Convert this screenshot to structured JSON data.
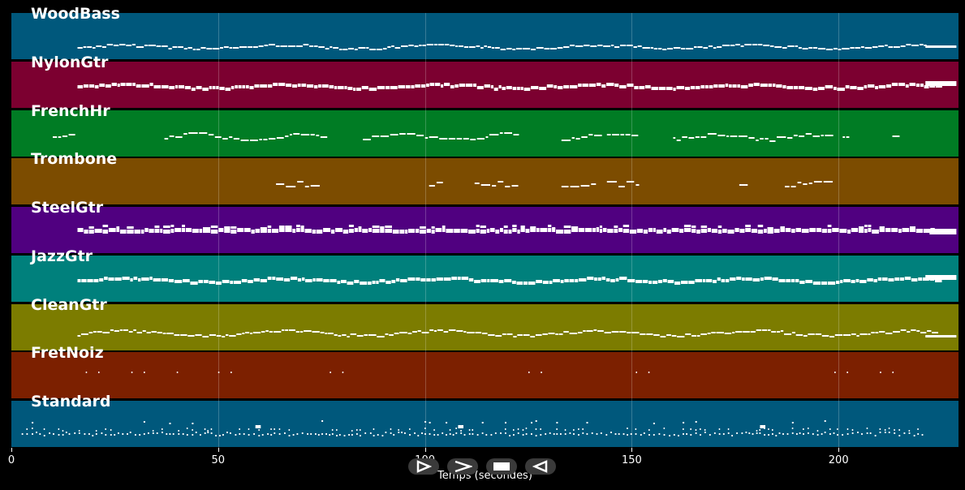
{
  "tracks": [
    {
      "name": "WoodBass",
      "color": "#00587c",
      "pattern": "steady-low"
    },
    {
      "name": "NylonGtr",
      "color": "#7c0030",
      "pattern": "thick"
    },
    {
      "name": "FrenchHr",
      "color": "#007c24",
      "pattern": "phrases"
    },
    {
      "name": "Trombone",
      "color": "#7c4c00",
      "pattern": "sparse"
    },
    {
      "name": "SteelGtr",
      "color": "#500080",
      "pattern": "chords"
    },
    {
      "name": "JazzGtr",
      "color": "#00807c",
      "pattern": "thick"
    },
    {
      "name": "CleanGtr",
      "color": "#7c7c00",
      "pattern": "wavy"
    },
    {
      "name": "FretNoiz",
      "color": "#7c2000",
      "pattern": "dots"
    },
    {
      "name": "Standard",
      "color": "#00587c",
      "pattern": "drums"
    }
  ],
  "axis": {
    "label": "Temps (secondes)",
    "min": 0,
    "max": 229,
    "ticks": [
      0,
      50,
      100,
      150,
      200
    ]
  },
  "controls": [
    {
      "name": "play-outline-icon",
      "symbol": "▷"
    },
    {
      "name": "fast-forward-icon",
      "symbol": ">"
    },
    {
      "name": "stop-icon",
      "symbol": "■"
    },
    {
      "name": "rewind-icon",
      "symbol": "◁"
    }
  ]
}
